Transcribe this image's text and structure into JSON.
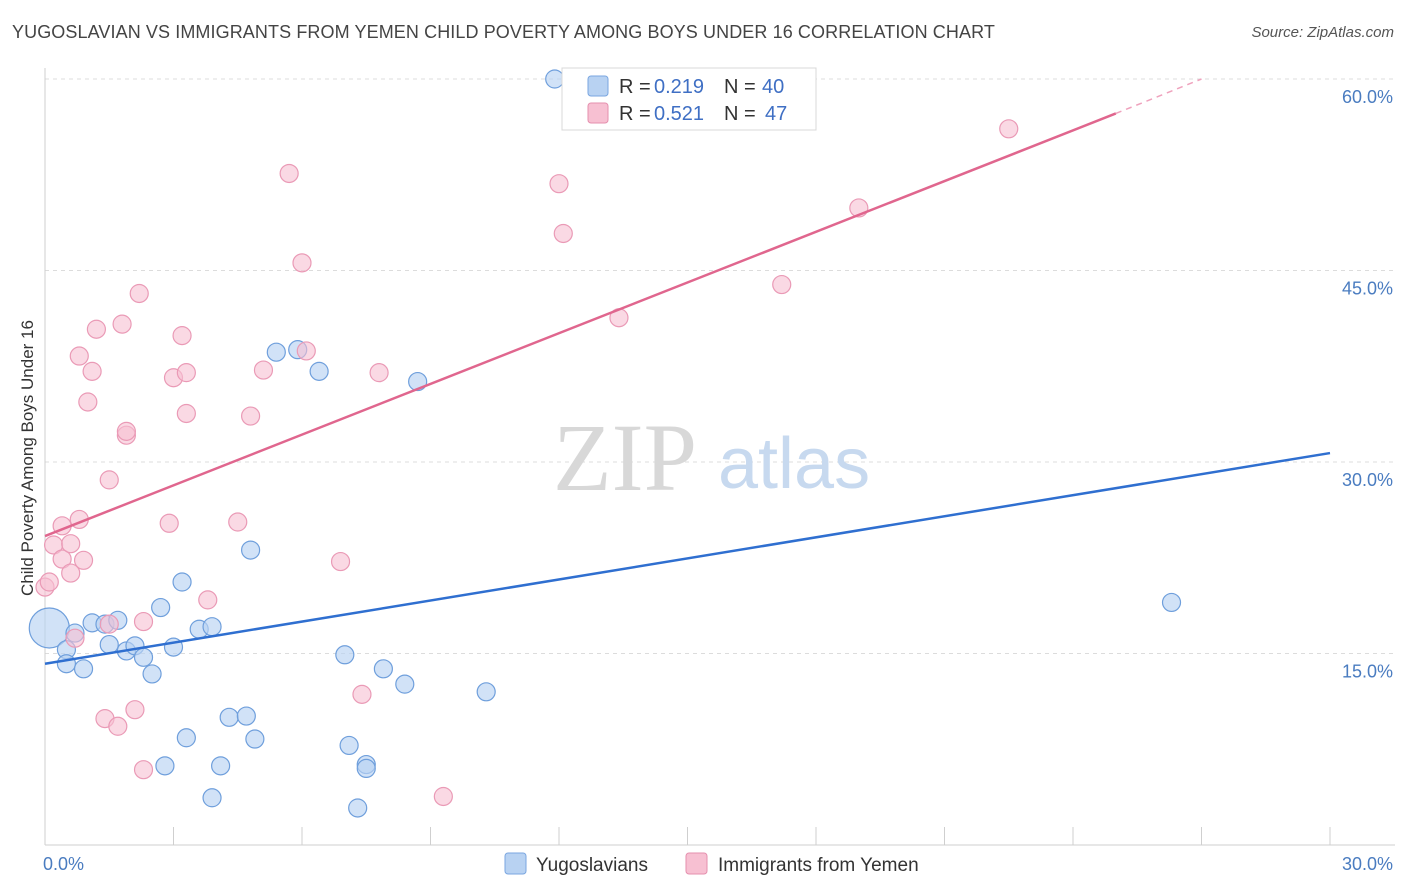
{
  "title": "YUGOSLAVIAN VS IMMIGRANTS FROM YEMEN CHILD POVERTY AMONG BOYS UNDER 16 CORRELATION CHART",
  "source": "Source: ZipAtlas.com",
  "watermark": {
    "zip": "ZIP",
    "atlas": "atlas"
  },
  "colors": {
    "blue": "#4a86d8",
    "blue_fill": "#b8d2f2",
    "pink": "#e0668e",
    "pink_fill": "#f7c0d2",
    "grid": "#dcdcdc",
    "tick_text": "#4a7cc0"
  },
  "legend": {
    "series1": {
      "r_label": "R =",
      "r_value": "0.219",
      "n_label": "N =",
      "n_value": "40"
    },
    "series2": {
      "r_label": "R =",
      "r_value": "0.521",
      "n_label": "N =",
      "n_value": "47"
    }
  },
  "bottom_legend": {
    "series1": "Yugoslavians",
    "series2": "Immigrants from Yemen"
  },
  "chart_data": {
    "type": "scatter",
    "title": "YUGOSLAVIAN VS IMMIGRANTS FROM YEMEN CHILD POVERTY AMONG BOYS UNDER 16 CORRELATION CHART",
    "xlabel": "",
    "ylabel": "Child Poverty Among Boys Under 16",
    "xlim": [
      0,
      30
    ],
    "ylim": [
      0,
      60
    ],
    "x_tick_labels": [
      "0.0%",
      "30.0%"
    ],
    "y_ticks": [
      15,
      30,
      45,
      60
    ],
    "y_tick_labels": [
      "15.0%",
      "30.0%",
      "45.0%",
      "60.0%"
    ],
    "series": [
      {
        "name": "Yugoslavians",
        "r": 0.219,
        "n": 40,
        "trend": {
          "x0": 0,
          "y0": 14.2,
          "x1": 30,
          "y1": 30.7
        },
        "points": [
          [
            0.1,
            17.0
          ],
          [
            0.5,
            15.3
          ],
          [
            0.7,
            16.6
          ],
          [
            0.5,
            14.2
          ],
          [
            0.9,
            13.8
          ],
          [
            1.1,
            17.4
          ],
          [
            1.4,
            17.3
          ],
          [
            1.7,
            17.6
          ],
          [
            1.5,
            15.7
          ],
          [
            1.9,
            15.2
          ],
          [
            2.1,
            15.6
          ],
          [
            2.3,
            14.7
          ],
          [
            2.5,
            13.4
          ],
          [
            2.7,
            18.6
          ],
          [
            3.0,
            15.5
          ],
          [
            3.2,
            20.6
          ],
          [
            3.6,
            16.9
          ],
          [
            3.9,
            17.1
          ],
          [
            3.3,
            8.4
          ],
          [
            2.8,
            6.2
          ],
          [
            4.1,
            6.2
          ],
          [
            4.3,
            10.0
          ],
          [
            4.7,
            10.1
          ],
          [
            4.9,
            8.3
          ],
          [
            3.9,
            3.7
          ],
          [
            4.8,
            23.1
          ],
          [
            5.4,
            38.6
          ],
          [
            5.9,
            38.8
          ],
          [
            6.4,
            37.1
          ],
          [
            7.1,
            7.8
          ],
          [
            7.0,
            14.9
          ],
          [
            7.5,
            6.3
          ],
          [
            7.5,
            6.0
          ],
          [
            7.3,
            2.9
          ],
          [
            7.9,
            13.8
          ],
          [
            8.4,
            12.6
          ],
          [
            8.7,
            36.3
          ],
          [
            10.3,
            12.0
          ],
          [
            11.9,
            60.0
          ],
          [
            26.3,
            19.0
          ]
        ]
      },
      {
        "name": "Immigrants from Yemen",
        "r": 0.521,
        "n": 47,
        "trend": {
          "x0": 0,
          "y0": 24.2,
          "x1": 25.0,
          "y1": 57.3
        },
        "trend_dashed_end": {
          "x": 27.0,
          "y": 60.0
        },
        "points": [
          [
            0.0,
            20.2
          ],
          [
            0.1,
            20.6
          ],
          [
            0.2,
            23.5
          ],
          [
            0.4,
            25.0
          ],
          [
            0.4,
            22.4
          ],
          [
            0.6,
            23.6
          ],
          [
            0.6,
            21.3
          ],
          [
            0.7,
            16.2
          ],
          [
            0.8,
            38.3
          ],
          [
            0.8,
            25.5
          ],
          [
            0.9,
            22.3
          ],
          [
            1.0,
            34.7
          ],
          [
            1.1,
            37.1
          ],
          [
            1.2,
            40.4
          ],
          [
            1.4,
            9.9
          ],
          [
            1.5,
            17.3
          ],
          [
            1.5,
            28.6
          ],
          [
            1.7,
            9.3
          ],
          [
            1.8,
            40.8
          ],
          [
            1.9,
            32.1
          ],
          [
            1.9,
            32.4
          ],
          [
            2.1,
            10.6
          ],
          [
            2.2,
            43.2
          ],
          [
            2.3,
            5.9
          ],
          [
            2.3,
            17.5
          ],
          [
            2.9,
            25.2
          ],
          [
            3.0,
            36.6
          ],
          [
            3.2,
            39.9
          ],
          [
            3.3,
            33.8
          ],
          [
            3.3,
            37.0
          ],
          [
            3.8,
            19.2
          ],
          [
            4.5,
            25.3
          ],
          [
            4.8,
            33.6
          ],
          [
            5.1,
            37.2
          ],
          [
            5.7,
            52.6
          ],
          [
            6.0,
            45.6
          ],
          [
            6.1,
            38.7
          ],
          [
            6.9,
            22.2
          ],
          [
            7.4,
            11.8
          ],
          [
            7.8,
            37.0
          ],
          [
            9.3,
            3.8
          ],
          [
            12.0,
            51.8
          ],
          [
            12.1,
            47.9
          ],
          [
            13.4,
            41.3
          ],
          [
            17.2,
            43.9
          ],
          [
            19.0,
            49.9
          ],
          [
            22.5,
            56.1
          ]
        ]
      }
    ]
  }
}
